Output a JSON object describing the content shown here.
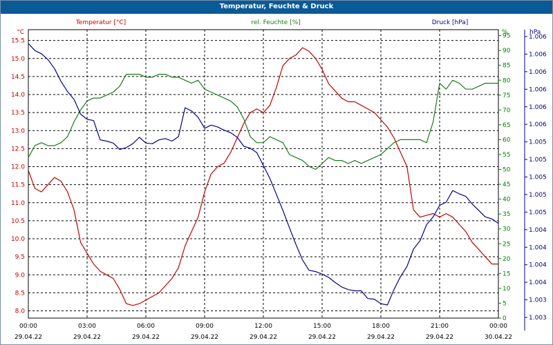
{
  "window": {
    "title": "Temperatur, Feuchte & Druck"
  },
  "chart_data": {
    "type": "line",
    "title": "Temperatur, Feuchte & Druck",
    "x_ticks": [
      {
        "time": "00:00",
        "date": "29.04.22"
      },
      {
        "time": "03:00",
        "date": "29.04.22"
      },
      {
        "time": "06:00",
        "date": "29.04.22"
      },
      {
        "time": "09:00",
        "date": "29.04.22"
      },
      {
        "time": "12:00",
        "date": "29.04.22"
      },
      {
        "time": "15:00",
        "date": "29.04.22"
      },
      {
        "time": "18:00",
        "date": "29.04.22"
      },
      {
        "time": "21:00",
        "date": "29.04.22"
      },
      {
        "time": "00:00",
        "date": "30.04.22"
      }
    ],
    "xlim": [
      "29.04.22 00:00",
      "30.04.22 00:00"
    ],
    "grid": true,
    "axes": {
      "left": {
        "unit": "°C",
        "ylim": [
          7.8,
          15.8
        ],
        "color": "#c00000",
        "ticks": [
          "15.5",
          "15.0",
          "14.5",
          "14.0",
          "13.5",
          "13.0",
          "12.5",
          "12.0",
          "11.5",
          "11.0",
          "10.5",
          "10.0",
          "9.5",
          "9.0",
          "8.5",
          "8.0"
        ]
      },
      "right1": {
        "unit": "%",
        "ylim": [
          0,
          97
        ],
        "color": "#008000",
        "ticks": [
          "95",
          "90",
          "85",
          "80",
          "75",
          "70",
          "65",
          "60",
          "55",
          "50",
          "45",
          "40",
          "35",
          "30",
          "25",
          "20",
          "15",
          "10",
          "5",
          "0"
        ]
      },
      "right2": {
        "unit": "hPa",
        "color": "#00008b",
        "ticks": [
          "1.006",
          "1.006",
          "1.006",
          "1.006",
          "1.006",
          "1.006",
          "1.005",
          "1.005",
          "1.005",
          "1.005",
          "1.005",
          "1.004",
          "1.004",
          "1.004",
          "1.004",
          "1.003",
          "1.003"
        ]
      }
    },
    "series": [
      {
        "name": "Temperatur [°C]",
        "axis": "left",
        "color": "#c00000",
        "x": [
          "29.04.22 00:00",
          "29.04.22 00:20",
          "29.04.22 00:40",
          "29.04.22 01:00",
          "29.04.22 01:20",
          "29.04.22 01:40",
          "29.04.22 02:00",
          "29.04.22 02:20",
          "29.04.22 02:40",
          "29.04.22 03:00",
          "29.04.22 03:20",
          "29.04.22 03:40",
          "29.04.22 04:00",
          "29.04.22 04:20",
          "29.04.22 04:40",
          "29.04.22 05:00",
          "29.04.22 05:20",
          "29.04.22 05:40",
          "29.04.22 06:00",
          "29.04.22 06:20",
          "29.04.22 06:40",
          "29.04.22 07:00",
          "29.04.22 07:20",
          "29.04.22 07:40",
          "29.04.22 08:00",
          "29.04.22 08:20",
          "29.04.22 08:40",
          "29.04.22 09:00",
          "29.04.22 09:20",
          "29.04.22 09:40",
          "29.04.22 10:00",
          "29.04.22 10:20",
          "29.04.22 10:40",
          "29.04.22 11:00",
          "29.04.22 11:20",
          "29.04.22 11:40",
          "29.04.22 12:00",
          "29.04.22 12:20",
          "29.04.22 12:40",
          "29.04.22 13:00",
          "29.04.22 13:20",
          "29.04.22 13:40",
          "29.04.22 14:00",
          "29.04.22 14:20",
          "29.04.22 14:40",
          "29.04.22 15:00",
          "29.04.22 15:20",
          "29.04.22 15:40",
          "29.04.22 16:00",
          "29.04.22 16:20",
          "29.04.22 16:40",
          "29.04.22 17:00",
          "29.04.22 17:20",
          "29.04.22 17:40",
          "29.04.22 18:00",
          "29.04.22 18:20",
          "29.04.22 18:40",
          "29.04.22 19:00",
          "29.04.22 19:20",
          "29.04.22 19:40",
          "29.04.22 20:00",
          "29.04.22 20:20",
          "29.04.22 20:40",
          "29.04.22 21:00",
          "29.04.22 21:20",
          "29.04.22 21:40",
          "29.04.22 22:00",
          "29.04.22 22:20",
          "29.04.22 22:40",
          "29.04.22 23:00",
          "29.04.22 23:20",
          "29.04.22 23:40",
          "30.04.22 00:00"
        ],
        "values": [
          11.9,
          11.4,
          11.3,
          11.5,
          11.7,
          11.6,
          11.3,
          10.8,
          9.9,
          9.6,
          9.3,
          9.1,
          9.0,
          8.9,
          8.6,
          8.2,
          8.15,
          8.2,
          8.3,
          8.4,
          8.5,
          8.7,
          8.9,
          9.2,
          9.8,
          10.2,
          10.6,
          11.3,
          11.8,
          12.0,
          12.1,
          12.4,
          12.8,
          13.2,
          13.5,
          13.6,
          13.5,
          13.7,
          14.2,
          14.8,
          15.0,
          15.1,
          15.3,
          15.2,
          15.0,
          14.7,
          14.3,
          14.1,
          13.9,
          13.8,
          13.8,
          13.7,
          13.6,
          13.5,
          13.3,
          13.1,
          12.8,
          12.4,
          12.0,
          10.8,
          10.6,
          10.65,
          10.7,
          10.6,
          10.7,
          10.6,
          10.4,
          10.2,
          9.9,
          9.7,
          9.5,
          9.3,
          9.3
        ]
      },
      {
        "name": "rel. Feuchte [%]",
        "axis": "right1",
        "color": "#1a7a1a",
        "x": [
          "29.04.22 00:00",
          "29.04.22 00:20",
          "29.04.22 00:40",
          "29.04.22 01:00",
          "29.04.22 01:20",
          "29.04.22 01:40",
          "29.04.22 02:00",
          "29.04.22 02:20",
          "29.04.22 02:40",
          "29.04.22 03:00",
          "29.04.22 03:20",
          "29.04.22 03:40",
          "29.04.22 04:00",
          "29.04.22 04:20",
          "29.04.22 04:40",
          "29.04.22 05:00",
          "29.04.22 05:20",
          "29.04.22 05:40",
          "29.04.22 06:00",
          "29.04.22 06:20",
          "29.04.22 06:40",
          "29.04.22 07:00",
          "29.04.22 07:20",
          "29.04.22 07:40",
          "29.04.22 08:00",
          "29.04.22 08:20",
          "29.04.22 08:40",
          "29.04.22 09:00",
          "29.04.22 09:20",
          "29.04.22 09:40",
          "29.04.22 10:00",
          "29.04.22 10:20",
          "29.04.22 10:40",
          "29.04.22 11:00",
          "29.04.22 11:20",
          "29.04.22 11:40",
          "29.04.22 12:00",
          "29.04.22 12:20",
          "29.04.22 12:40",
          "29.04.22 13:00",
          "29.04.22 13:20",
          "29.04.22 13:40",
          "29.04.22 14:00",
          "29.04.22 14:20",
          "29.04.22 14:40",
          "29.04.22 15:00",
          "29.04.22 15:20",
          "29.04.22 15:40",
          "29.04.22 16:00",
          "29.04.22 16:20",
          "29.04.22 16:40",
          "29.04.22 17:00",
          "29.04.22 17:20",
          "29.04.22 17:40",
          "29.04.22 18:00",
          "29.04.22 18:20",
          "29.04.22 18:40",
          "29.04.22 19:00",
          "29.04.22 19:20",
          "29.04.22 19:40",
          "29.04.22 20:00",
          "29.04.22 20:20",
          "29.04.22 20:40",
          "29.04.22 21:00",
          "29.04.22 21:20",
          "29.04.22 21:40",
          "29.04.22 22:00",
          "29.04.22 22:20",
          "29.04.22 22:40",
          "29.04.22 23:00",
          "29.04.22 23:20",
          "29.04.22 23:40",
          "30.04.22 00:00"
        ],
        "values": [
          54,
          58,
          59,
          58,
          58,
          59,
          61,
          66,
          70,
          73,
          74,
          74,
          75,
          76,
          78,
          82,
          82,
          82,
          81,
          81,
          82,
          82,
          81,
          81,
          80,
          79,
          80,
          77,
          76,
          75,
          74,
          73,
          71,
          67,
          61,
          59,
          59,
          61,
          60,
          59,
          55,
          54,
          53,
          51,
          50,
          52,
          54,
          53,
          53,
          52,
          53,
          52,
          53,
          54,
          55,
          57,
          59,
          60,
          60,
          60,
          60,
          59,
          66,
          79,
          77,
          80,
          79,
          77,
          77,
          78,
          79,
          79,
          79
        ]
      },
      {
        "name": "Druck [hPa]",
        "axis": "right2",
        "color": "#00008b",
        "x": [
          "29.04.22 00:00",
          "29.04.22 00:20",
          "29.04.22 00:40",
          "29.04.22 01:00",
          "29.04.22 01:20",
          "29.04.22 01:40",
          "29.04.22 02:00",
          "29.04.22 02:20",
          "29.04.22 02:40",
          "29.04.22 03:00",
          "29.04.22 03:20",
          "29.04.22 03:40",
          "29.04.22 04:00",
          "29.04.22 04:20",
          "29.04.22 04:40",
          "29.04.22 05:00",
          "29.04.22 05:20",
          "29.04.22 05:40",
          "29.04.22 06:00",
          "29.04.22 06:20",
          "29.04.22 06:40",
          "29.04.22 07:00",
          "29.04.22 07:20",
          "29.04.22 07:40",
          "29.04.22 08:00",
          "29.04.22 08:20",
          "29.04.22 08:40",
          "29.04.22 09:00",
          "29.04.22 09:20",
          "29.04.22 09:40",
          "29.04.22 10:00",
          "29.04.22 10:20",
          "29.04.22 10:40",
          "29.04.22 11:00",
          "29.04.22 11:20",
          "29.04.22 11:40",
          "29.04.22 12:00",
          "29.04.22 12:20",
          "29.04.22 12:40",
          "29.04.22 13:00",
          "29.04.22 13:20",
          "29.04.22 13:40",
          "29.04.22 14:00",
          "29.04.22 14:20",
          "29.04.22 14:40",
          "29.04.22 15:00",
          "29.04.22 15:20",
          "29.04.22 15:40",
          "29.04.22 16:00",
          "29.04.22 16:20",
          "29.04.22 16:40",
          "29.04.22 17:00",
          "29.04.22 17:20",
          "29.04.22 17:40",
          "29.04.22 18:00",
          "29.04.22 18:20",
          "29.04.22 18:40",
          "29.04.22 19:00",
          "29.04.22 19:20",
          "29.04.22 19:40",
          "29.04.22 20:00",
          "29.04.22 20:20",
          "29.04.22 20:40",
          "29.04.22 21:00",
          "29.04.22 21:20",
          "29.04.22 21:40",
          "29.04.22 22:00",
          "29.04.22 22:20",
          "29.04.22 22:40",
          "29.04.22 23:00",
          "29.04.22 23:20",
          "29.04.22 23:40",
          "30.04.22 00:00"
        ],
        "values": [
          1.00675,
          1.00664,
          1.00659,
          1.0065,
          1.00636,
          1.00616,
          1.006,
          1.00588,
          1.00565,
          1.00557,
          1.00555,
          1.00525,
          1.00523,
          1.0052,
          1.0051,
          1.00513,
          1.00519,
          1.00529,
          1.0052,
          1.00519,
          1.00525,
          1.00527,
          1.00523,
          1.0053,
          1.00575,
          1.0057,
          1.0056,
          1.00543,
          1.00548,
          1.00545,
          1.0054,
          1.00536,
          1.00529,
          1.00515,
          1.00512,
          1.00505,
          1.00485,
          1.00465,
          1.0044,
          1.00415,
          1.00388,
          1.00362,
          1.00338,
          1.00322,
          1.0032,
          1.00316,
          1.00311,
          1.00303,
          1.00296,
          1.00292,
          1.0029,
          1.0029,
          1.00278,
          1.00277,
          1.0027,
          1.00268,
          1.00292,
          1.00312,
          1.00328,
          1.00355,
          1.00368,
          1.00393,
          1.00405,
          1.00423,
          1.00428,
          1.00446,
          1.00441,
          1.00437,
          1.00425,
          1.00415,
          1.00405,
          1.00402,
          1.00395
        ]
      }
    ]
  }
}
